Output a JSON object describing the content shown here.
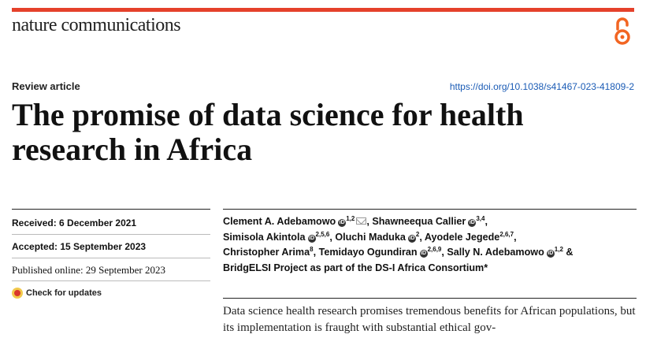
{
  "header": {
    "journal": "nature communications",
    "open_access_icon": "open-access-icon",
    "accent_color": "#e5412b"
  },
  "article": {
    "type": "Review article",
    "doi": "https://doi.org/10.1038/s41467-023-41809-2",
    "title": "The promise of data science for health research in Africa"
  },
  "dates": {
    "received": "Received: 6 December 2021",
    "accepted": "Accepted: 15 September 2023",
    "published": "Published online: 29 September 2023"
  },
  "check_updates": "Check for updates",
  "authors": [
    {
      "name": "Clement A. Adebamowo",
      "sup": "1,2"
    },
    {
      "name": "Shawneequa Callier",
      "sup": "3,4"
    },
    {
      "name": "Simisola Akintola",
      "sup": "2,5,6"
    },
    {
      "name": "Oluchi Maduka",
      "sup": "2"
    },
    {
      "name": "Ayodele Jegede",
      "sup": "2,6,7"
    },
    {
      "name": "Christopher Arima",
      "sup": "8"
    },
    {
      "name": "Temidayo Ogundiran",
      "sup": "2,6,9"
    },
    {
      "name": "Sally N. Adebamowo",
      "sup": "1,2"
    },
    {
      "name": "BridgELSI Project as part of the DS-I Africa Consortium*",
      "sup": ""
    }
  ],
  "abstract": "Data science health research promises tremendous benefits for African populations, but its implementation is fraught with substantial ethical gov-"
}
